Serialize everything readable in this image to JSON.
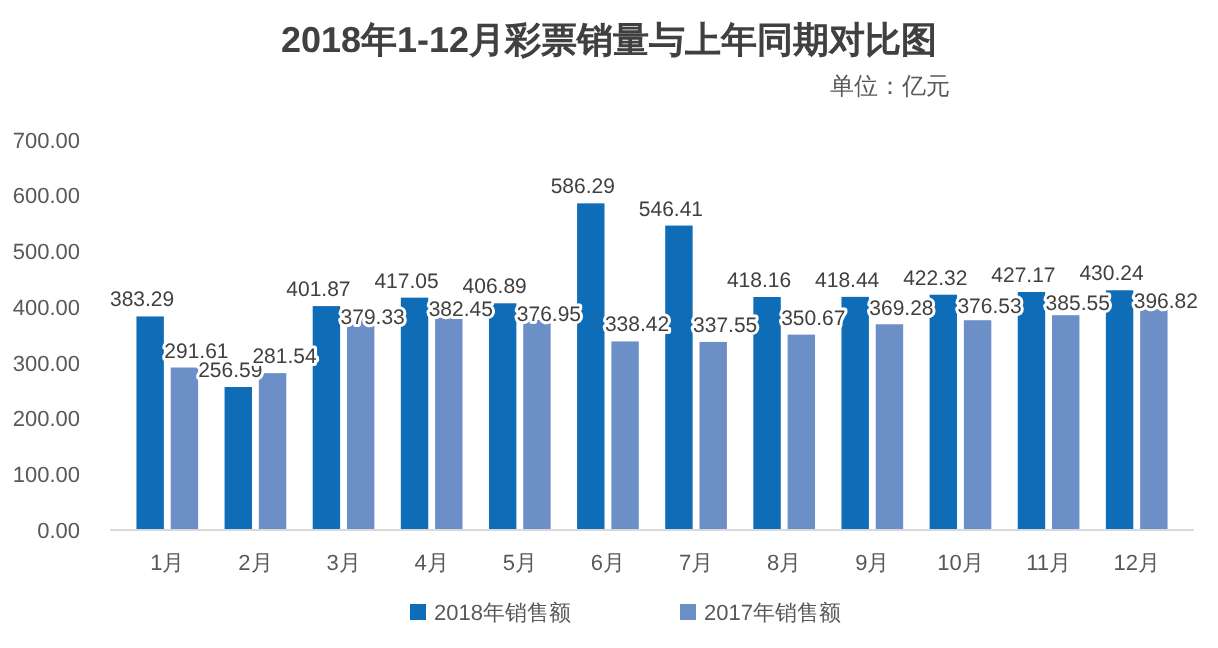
{
  "chart_data": {
    "type": "bar",
    "title": "2018年1-12月彩票销量与上年同期对比图",
    "subtitle": "单位：亿元",
    "categories": [
      "1月",
      "2月",
      "3月",
      "4月",
      "5月",
      "6月",
      "7月",
      "8月",
      "9月",
      "10月",
      "11月",
      "12月"
    ],
    "series": [
      {
        "name": "2018年销售额",
        "color": "#0f6cb6",
        "values": [
          383.29,
          256.59,
          401.87,
          417.05,
          406.89,
          586.29,
          546.41,
          418.16,
          418.44,
          422.32,
          427.17,
          430.24
        ]
      },
      {
        "name": "2017年销售额",
        "color": "#6b8fc6",
        "values": [
          291.61,
          281.54,
          379.33,
          382.45,
          376.95,
          338.42,
          337.55,
          350.67,
          369.28,
          376.53,
          385.55,
          396.82
        ]
      }
    ],
    "ylim": [
      0,
      700
    ],
    "yticks": [
      {
        "value": 0,
        "label": "0.00"
      },
      {
        "value": 100,
        "label": "100.00"
      },
      {
        "value": 200,
        "label": "200.00"
      },
      {
        "value": 300,
        "label": "300.00"
      },
      {
        "value": 400,
        "label": "400.00"
      },
      {
        "value": 500,
        "label": "500.00"
      },
      {
        "value": 600,
        "label": "600.00"
      },
      {
        "value": 700,
        "label": "700.00"
      }
    ],
    "data_labels": true,
    "legend": "bottom",
    "grid": false
  }
}
